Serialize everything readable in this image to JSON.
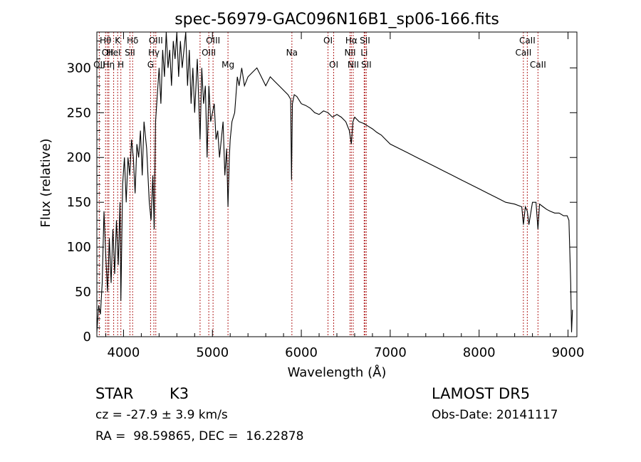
{
  "chart_data": {
    "type": "line",
    "title": "spec-56979-GAC096N16B1_sp06-166.fits",
    "xlabel": "Wavelength (Å)",
    "ylabel": "Flux (relative)",
    "xlim": [
      3700,
      9100
    ],
    "ylim": [
      0,
      340
    ],
    "x_ticks": [
      4000,
      5000,
      6000,
      7000,
      8000,
      9000
    ],
    "y_ticks": [
      0,
      50,
      100,
      150,
      200,
      250,
      300
    ],
    "series": [
      {
        "x": [
          3700,
          3720,
          3740,
          3760,
          3780,
          3800,
          3820,
          3840,
          3860,
          3880,
          3900,
          3920,
          3940,
          3960,
          3970,
          3990,
          4010,
          4030,
          4050,
          4070,
          4090,
          4110,
          4130,
          4150,
          4170,
          4190,
          4210,
          4230,
          4260,
          4290,
          4310,
          4330,
          4345,
          4360,
          4380,
          4400,
          4420,
          4440,
          4460,
          4480,
          4500,
          4520,
          4540,
          4560,
          4580,
          4600,
          4620,
          4640,
          4660,
          4680,
          4700,
          4720,
          4740,
          4760,
          4780,
          4800,
          4830,
          4861,
          4880,
          4900,
          4920,
          4940,
          4960,
          4980,
          5000,
          5020,
          5040,
          5060,
          5080,
          5100,
          5120,
          5140,
          5160,
          5175,
          5190,
          5200,
          5220,
          5250,
          5280,
          5300,
          5330,
          5360,
          5400,
          5450,
          5500,
          5550,
          5600,
          5650,
          5700,
          5750,
          5800,
          5850,
          5880,
          5890,
          5900,
          5920,
          5950,
          6000,
          6050,
          6100,
          6150,
          6200,
          6250,
          6300,
          6350,
          6400,
          6450,
          6500,
          6540,
          6563,
          6580,
          6600,
          6650,
          6700,
          6750,
          6800,
          6850,
          6900,
          6950,
          7000,
          7100,
          7200,
          7300,
          7400,
          7500,
          7600,
          7700,
          7800,
          7900,
          8000,
          8100,
          8200,
          8300,
          8400,
          8480,
          8498,
          8520,
          8542,
          8560,
          8600,
          8640,
          8662,
          8680,
          8720,
          8760,
          8800,
          8850,
          8900,
          8950,
          8990,
          9010,
          9030,
          9040,
          9050
        ],
        "y": [
          5,
          35,
          25,
          60,
          140,
          90,
          50,
          110,
          60,
          120,
          70,
          130,
          80,
          150,
          40,
          170,
          200,
          150,
          200,
          180,
          220,
          200,
          160,
          215,
          200,
          230,
          180,
          240,
          210,
          150,
          130,
          180,
          120,
          240,
          270,
          300,
          260,
          320,
          290,
          340,
          300,
          320,
          280,
          330,
          310,
          340,
          290,
          330,
          300,
          320,
          340,
          280,
          320,
          260,
          300,
          250,
          310,
          220,
          300,
          260,
          280,
          200,
          280,
          240,
          250,
          260,
          220,
          230,
          200,
          220,
          240,
          180,
          210,
          145,
          200,
          220,
          240,
          250,
          290,
          280,
          300,
          280,
          290,
          295,
          300,
          290,
          280,
          290,
          285,
          280,
          275,
          270,
          265,
          175,
          260,
          270,
          268,
          260,
          258,
          255,
          250,
          248,
          252,
          250,
          245,
          248,
          245,
          240,
          230,
          215,
          240,
          245,
          240,
          238,
          235,
          232,
          228,
          225,
          220,
          215,
          210,
          205,
          200,
          195,
          190,
          185,
          180,
          175,
          170,
          165,
          160,
          155,
          150,
          148,
          145,
          125,
          145,
          140,
          125,
          150,
          150,
          120,
          148,
          145,
          142,
          140,
          138,
          138,
          135,
          135,
          130,
          60,
          5,
          30
        ]
      }
    ],
    "line_markers": [
      {
        "wavelength": 3727,
        "label": "OII",
        "row": 3
      },
      {
        "wavelength": 3798,
        "label": "Hθ",
        "row": 1
      },
      {
        "wavelength": 3820,
        "label": "OII",
        "row": 2
      },
      {
        "wavelength": 3835,
        "label": "Hη",
        "row": 3
      },
      {
        "wavelength": 3889,
        "label": "HeI",
        "row": 2
      },
      {
        "wavelength": 3934,
        "label": "K",
        "row": 1
      },
      {
        "wavelength": 3970,
        "label": "H",
        "row": 3
      },
      {
        "wavelength": 4072,
        "label": "SII",
        "row": 2
      },
      {
        "wavelength": 4102,
        "label": "Hδ",
        "row": 1
      },
      {
        "wavelength": 4304,
        "label": "G",
        "row": 3
      },
      {
        "wavelength": 4341,
        "label": "Hγ",
        "row": 2
      },
      {
        "wavelength": 4363,
        "label": "OIII",
        "row": 1
      },
      {
        "wavelength": 4861,
        "label": "",
        "row": 0
      },
      {
        "wavelength": 4959,
        "label": "OIII",
        "row": 2
      },
      {
        "wavelength": 5007,
        "label": "OIII",
        "row": 1
      },
      {
        "wavelength": 5175,
        "label": "Mg",
        "row": 3
      },
      {
        "wavelength": 5894,
        "label": "Na",
        "row": 2
      },
      {
        "wavelength": 6300,
        "label": "OI",
        "row": 1
      },
      {
        "wavelength": 6364,
        "label": "OI",
        "row": 3
      },
      {
        "wavelength": 6548,
        "label": "NII",
        "row": 2
      },
      {
        "wavelength": 6563,
        "label": "Hα",
        "row": 1
      },
      {
        "wavelength": 6584,
        "label": "NII",
        "row": 3
      },
      {
        "wavelength": 6707,
        "label": "Li",
        "row": 2
      },
      {
        "wavelength": 6716,
        "label": "SII",
        "row": 1
      },
      {
        "wavelength": 6731,
        "label": "SII",
        "row": 3
      },
      {
        "wavelength": 8498,
        "label": "CaII",
        "row": 2
      },
      {
        "wavelength": 8542,
        "label": "CaII",
        "row": 1
      },
      {
        "wavelength": 8662,
        "label": "CaII",
        "row": 3
      }
    ],
    "marker_color": "#b22222"
  },
  "info": {
    "class": "STAR",
    "subclass": "K3",
    "survey": "LAMOST DR5",
    "cz_line": "cz = -27.9 ± 3.9 km/s",
    "obs_date": "Obs-Date: 20141117",
    "coords": "RA =  98.59865, DEC =  16.22878"
  }
}
